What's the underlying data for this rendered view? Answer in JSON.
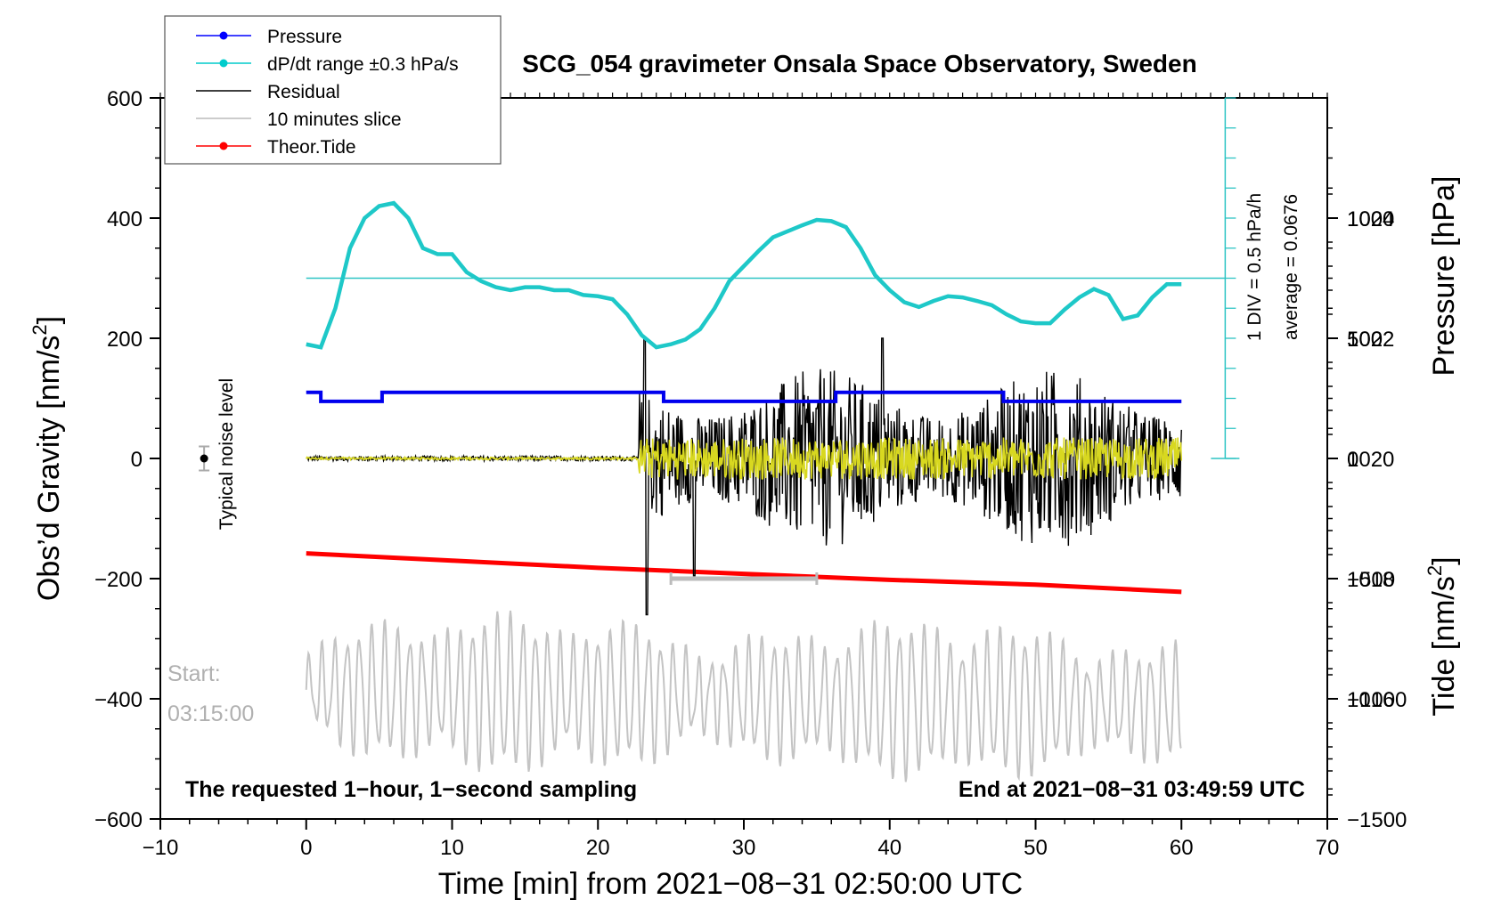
{
  "chart_data": {
    "type": "line",
    "title": "SCG_054 gravimeter Onsala Space Observatory, Sweden",
    "xlabel": "Time [min] from 2021−08−31 02:50:00 UTC",
    "ylabel_left": "Obs’d Gravity [nm/s",
    "ylabel_left_sup": "2",
    "ylabel_left_end": "]",
    "ylabel_right_pressure": "Pressure [hPa]",
    "ylabel_right_tide": "Tide [nm/s",
    "ylabel_right_tide_sup": "2",
    "ylabel_right_tide_end": "]",
    "xlim": [
      -10,
      70
    ],
    "ylim_gravity": [
      -600,
      600
    ],
    "ylim_pressure": [
      1014,
      1026
    ],
    "ylim_tide": [
      -1500,
      1500
    ],
    "x_ticks": [
      "−10",
      "0",
      "10",
      "20",
      "30",
      "40",
      "50",
      "60",
      "70"
    ],
    "y_ticks_left": [
      "600",
      "400",
      "200",
      "0",
      "−200",
      "−400",
      "−600"
    ],
    "y_ticks_pressure": [
      "1024",
      "1022",
      "1020",
      "1018",
      "1016"
    ],
    "y_ticks_tide": [
      "1000",
      "500",
      "0",
      "−500",
      "−1000",
      "−1500"
    ],
    "legend": [
      {
        "label": "Pressure",
        "color": "#0000ff",
        "marker": true
      },
      {
        "label": "dP/dt range ±0.3 hPa/s",
        "color": "#00cccc",
        "marker": true
      },
      {
        "label": "Residual",
        "color": "#000000",
        "marker": false
      },
      {
        "label": "10 minutes slice",
        "color": "#bbbbbb",
        "marker": false
      },
      {
        "label": "Theor.Tide",
        "color": "#ff0000",
        "marker": true
      }
    ],
    "series": [
      {
        "name": "Pressure",
        "units": "hPa",
        "color": "#0000ff",
        "x": [
          0,
          1,
          1,
          5.2,
          5.2,
          24.5,
          24.5,
          36.3,
          36.3,
          47.8,
          47.8,
          60
        ],
        "values": [
          1021.1,
          1021.1,
          1020.95,
          1020.95,
          1021.1,
          1021.1,
          1020.95,
          1020.95,
          1021.1,
          1021.1,
          1020.95,
          1020.95
        ]
      },
      {
        "name": "dP/dt",
        "units": "nm/s2 scale",
        "color": "#00cccc",
        "x": [
          0,
          1,
          2,
          3,
          4,
          5,
          6,
          7,
          8,
          9,
          10,
          11,
          12,
          13,
          14,
          15,
          16,
          17,
          18,
          19,
          20,
          21,
          22,
          23,
          24,
          25,
          26,
          27,
          28,
          29,
          30,
          31,
          32,
          33,
          34,
          35,
          36,
          37,
          38,
          39,
          40,
          41,
          42,
          43,
          44,
          45,
          46,
          47,
          48,
          49,
          50,
          51,
          52,
          53,
          54,
          55,
          56,
          57,
          58,
          59,
          60
        ],
        "values": [
          190,
          185,
          250,
          350,
          400,
          420,
          425,
          400,
          350,
          340,
          340,
          310,
          295,
          285,
          280,
          285,
          285,
          280,
          280,
          272,
          270,
          265,
          240,
          205,
          185,
          190,
          198,
          215,
          250,
          295,
          320,
          345,
          368,
          378,
          388,
          397,
          395,
          385,
          350,
          305,
          280,
          260,
          252,
          262,
          270,
          268,
          262,
          255,
          240,
          228,
          225,
          225,
          248,
          268,
          282,
          272,
          232,
          238,
          268,
          290,
          290
        ]
      },
      {
        "name": "Tide",
        "units": "nm/s2",
        "color": "#ff0000",
        "x": [
          0,
          10,
          20,
          30,
          40,
          50,
          60
        ],
        "values": [
          -395,
          -425,
          -455,
          -480,
          -505,
          -525,
          -555
        ]
      }
    ],
    "baseline_dpdt": 300,
    "noise_level_x": -7,
    "noise_level_value": 0,
    "noise_level_error": 20,
    "slice_range": [
      25,
      35
    ],
    "slice_level": -200
  },
  "labels": {
    "noise": "Typical noise level",
    "start_line1": "Start:",
    "start_line2": "03:15:00",
    "requested": "The requested 1−hour, 1−second sampling",
    "end": "End at 2021−08−31 03:49:59 UTC",
    "div": "1 DIV = 0.5 hPa/h",
    "average": "average = 0.0676"
  }
}
